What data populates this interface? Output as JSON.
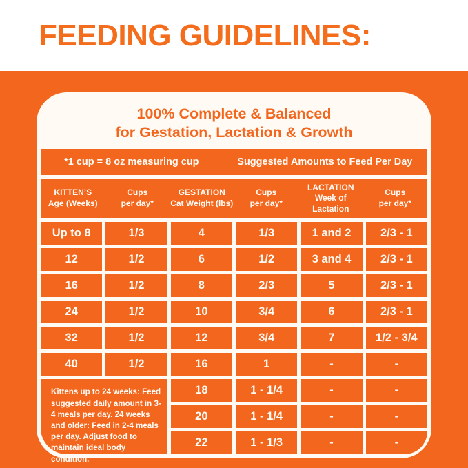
{
  "page_title": "FEEDING GUIDELINES:",
  "card": {
    "title_line1": "100% Complete & Balanced",
    "title_line2": "for Gestation, Lactation & Growth",
    "note_left": "*1 cup = 8 oz measuring cup",
    "note_right": "Suggested Amounts to Feed Per Day"
  },
  "table": {
    "headers": [
      [
        "KITTEN’S",
        "Age (Weeks)"
      ],
      [
        "Cups",
        "per day*"
      ],
      [
        "GESTATION",
        "Cat Weight (lbs)"
      ],
      [
        "Cups",
        "per day*"
      ],
      [
        "LACTATION",
        "Week of",
        "Lactation"
      ],
      [
        "Cups",
        "per day*"
      ]
    ],
    "rows": [
      [
        "Up to 8",
        "1/3",
        "4",
        "1/3",
        "1 and 2",
        "2/3 - 1"
      ],
      [
        "12",
        "1/2",
        "6",
        "1/2",
        "3 and 4",
        "2/3 - 1"
      ],
      [
        "16",
        "1/2",
        "8",
        "2/3",
        "5",
        "2/3 - 1"
      ],
      [
        "24",
        "1/2",
        "10",
        "3/4",
        "6",
        "2/3 - 1"
      ],
      [
        "32",
        "1/2",
        "12",
        "3/4",
        "7",
        "1/2 - 3/4"
      ],
      [
        "40",
        "1/2",
        "16",
        "1",
        "-",
        "-"
      ]
    ],
    "bottom_rows": [
      [
        "18",
        "1 - 1/4",
        "-",
        "-"
      ],
      [
        "20",
        "1 - 1/4",
        "-",
        "-"
      ],
      [
        "22",
        "1 - 1/3",
        "-",
        "-"
      ]
    ],
    "footnote": "Kittens up to 24 weeks: Feed suggested daily amount in 3-4 meals per day. 24 weeks and older: Feed in 2-4 meals per day. Adjust food to maintain ideal body condition."
  },
  "colors": {
    "orange": "#F2661E",
    "heading_orange": "#F36D1D",
    "warm_white": "#FFFBF4",
    "cell_text": "#FFFAF3"
  },
  "chart_data": {
    "type": "table",
    "title": "100% Complete & Balanced for Gestation, Lactation & Growth",
    "notes": [
      "*1 cup = 8 oz measuring cup",
      "Suggested Amounts to Feed Per Day"
    ],
    "columns": [
      "KITTEN'S Age (Weeks)",
      "Cups per day*",
      "GESTATION Cat Weight (lbs)",
      "Cups per day*",
      "LACTATION Week of Lactation",
      "Cups per day*"
    ],
    "rows": [
      [
        "Up to 8",
        "1/3",
        "4",
        "1/3",
        "1 and 2",
        "2/3 - 1"
      ],
      [
        "12",
        "1/2",
        "6",
        "1/2",
        "3 and 4",
        "2/3 - 1"
      ],
      [
        "16",
        "1/2",
        "8",
        "2/3",
        "5",
        "2/3 - 1"
      ],
      [
        "24",
        "1/2",
        "10",
        "3/4",
        "6",
        "2/3 - 1"
      ],
      [
        "32",
        "1/2",
        "12",
        "3/4",
        "7",
        "1/2 - 3/4"
      ],
      [
        "40",
        "1/2",
        "16",
        "1",
        "-",
        "-"
      ],
      [
        null,
        null,
        "18",
        "1 - 1/4",
        "-",
        "-"
      ],
      [
        null,
        null,
        "20",
        "1 - 1/4",
        "-",
        "-"
      ],
      [
        null,
        null,
        "22",
        "1 - 1/3",
        "-",
        "-"
      ]
    ],
    "footnote": "Kittens up to 24 weeks: Feed suggested daily amount in 3-4 meals per day. 24 weeks and older: Feed in 2-4 meals per day. Adjust food to maintain ideal body condition."
  }
}
